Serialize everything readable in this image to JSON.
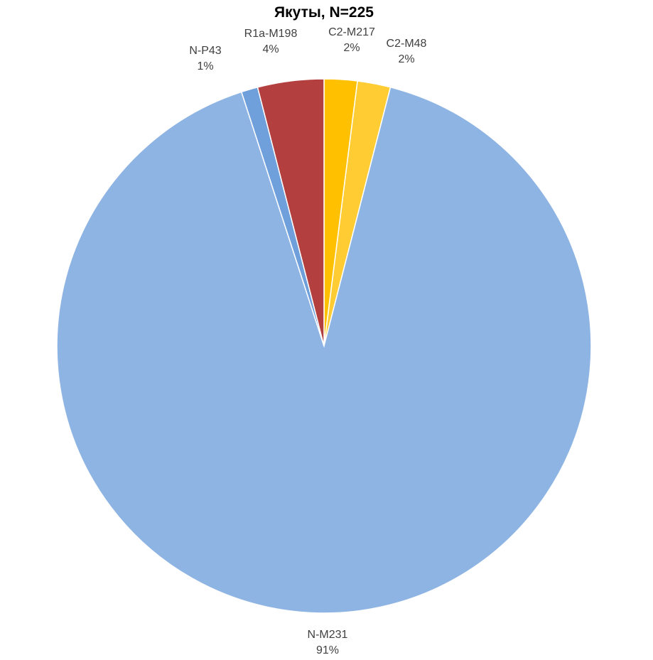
{
  "chart_data": {
    "type": "pie",
    "title": "Якуты, N=225",
    "slices": [
      {
        "name": "C2-M217",
        "value": 2,
        "value_label": "2%",
        "color": "#ffc000"
      },
      {
        "name": "C2-M48",
        "value": 2,
        "value_label": "2%",
        "color": "#ffcd33"
      },
      {
        "name": "N-M231",
        "value": 91,
        "value_label": "91%",
        "color": "#8eb4e3"
      },
      {
        "name": "N-P43",
        "value": 1,
        "value_label": "1%",
        "color": "#6fa0dc"
      },
      {
        "name": "R1a-M198",
        "value": 4,
        "value_label": "4%",
        "color": "#b3403e"
      }
    ],
    "legend": "none",
    "data_labels": "outside"
  }
}
